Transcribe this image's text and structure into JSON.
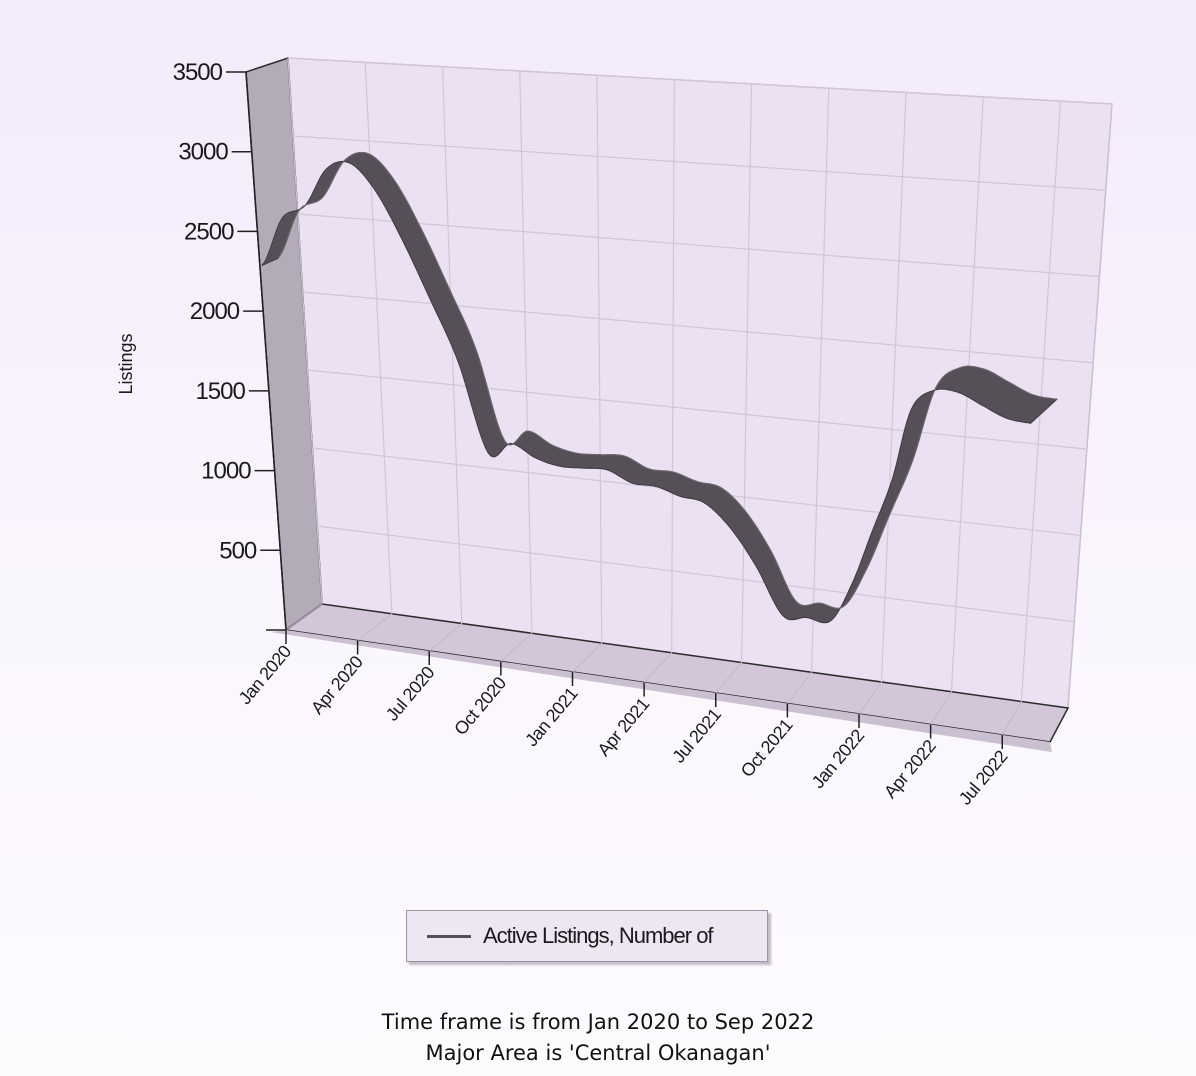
{
  "chart_data": {
    "type": "area",
    "style": "3d-ribbon",
    "ylabel": "Listings",
    "y_ticks": [
      500,
      1000,
      1500,
      2000,
      2500,
      3000,
      3500
    ],
    "ylim": [
      0,
      3500
    ],
    "x_ticks": [
      "Jan 2020",
      "Apr 2020",
      "Jul 2020",
      "Oct 2020",
      "Jan 2021",
      "Apr 2021",
      "Jul 2021",
      "Oct 2021",
      "Jan 2022",
      "Apr 2022",
      "Jul 2022"
    ],
    "x": [
      "Jan 2020",
      "Feb 2020",
      "Mar 2020",
      "Apr 2020",
      "May 2020",
      "Jun 2020",
      "Jul 2020",
      "Aug 2020",
      "Sep 2020",
      "Oct 2020",
      "Nov 2020",
      "Dec 2020",
      "Jan 2021",
      "Feb 2021",
      "Mar 2021",
      "Apr 2021",
      "May 2021",
      "Jun 2021",
      "Jul 2021",
      "Aug 2021",
      "Sep 2021",
      "Oct 2021",
      "Nov 2021",
      "Dec 2021",
      "Jan 2022",
      "Feb 2022",
      "Mar 2022",
      "Apr 2022",
      "May 2022",
      "Jun 2022",
      "Jul 2022",
      "Aug 2022",
      "Sep 2022"
    ],
    "series": [
      {
        "name": "Active Listings, Number of",
        "color": "#555057",
        "values": [
          2280,
          2600,
          2700,
          2950,
          3010,
          2860,
          2570,
          2220,
          1850,
          1300,
          1380,
          1310,
          1280,
          1290,
          1300,
          1240,
          1240,
          1200,
          1180,
          1050,
          830,
          540,
          550,
          550,
          800,
          1150,
          1500,
          1960,
          2100,
          2110,
          2050,
          1990,
          1980
        ]
      }
    ],
    "grid": true,
    "legend": "bottom-center"
  },
  "legend": {
    "label": "Active Listings, Number of"
  },
  "captions": {
    "line1": "Time frame is from Jan 2020 to Sep 2022",
    "line2": "Major Area is 'Central Okanagan'"
  },
  "colors": {
    "wall": "#ebe1f2",
    "side_wall": "#b0a8b4",
    "floor": "#d3c6d9",
    "ribbon": "#555057"
  }
}
